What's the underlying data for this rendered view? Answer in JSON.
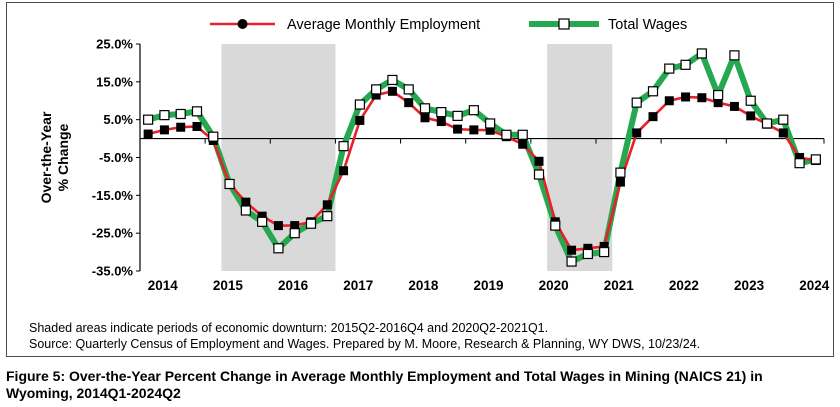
{
  "chart_data": {
    "type": "line",
    "ylabel_line1": "Over-the-Year",
    "ylabel_line2": "% Change",
    "ylim": [
      -35,
      25
    ],
    "yticks": [
      25,
      15,
      5,
      -5,
      -15,
      -25,
      -35
    ],
    "ytick_labels": [
      "25.0%",
      "15.0%",
      "5.0%",
      "-5.0%",
      "-15.0%",
      "-25.0%",
      "-35.0%"
    ],
    "xlim": [
      2014,
      2024.5
    ],
    "xticks": [
      2014,
      2015,
      2016,
      2017,
      2018,
      2019,
      2020,
      2021,
      2022,
      2023,
      2024
    ],
    "xtick_labels": [
      "2014",
      "2015",
      "2016",
      "2017",
      "2018",
      "2019",
      "2020",
      "2021",
      "2022",
      "2023",
      "2024"
    ],
    "x_quarters": [
      "2014Q1",
      "2014Q2",
      "2014Q3",
      "2014Q4",
      "2015Q1",
      "2015Q2",
      "2015Q3",
      "2015Q4",
      "2016Q1",
      "2016Q2",
      "2016Q3",
      "2016Q4",
      "2017Q1",
      "2017Q2",
      "2017Q3",
      "2017Q4",
      "2018Q1",
      "2018Q2",
      "2018Q3",
      "2018Q4",
      "2019Q1",
      "2019Q2",
      "2019Q3",
      "2019Q4",
      "2020Q1",
      "2020Q2",
      "2020Q3",
      "2020Q4",
      "2021Q1",
      "2021Q2",
      "2021Q3",
      "2021Q4",
      "2022Q1",
      "2022Q2",
      "2022Q3",
      "2022Q4",
      "2023Q1",
      "2023Q2",
      "2023Q3",
      "2023Q4",
      "2024Q1",
      "2024Q2"
    ],
    "shaded_periods": [
      [
        "2015Q2",
        "2016Q4"
      ],
      [
        "2020Q2",
        "2021Q1"
      ]
    ],
    "legend_position": "top",
    "series": [
      {
        "name": "Average Monthly Employment",
        "color": "#e8202a",
        "marker": "filled-circle-square",
        "values": [
          1.2,
          2.3,
          3.0,
          3.2,
          -0.5,
          -12.0,
          -16.8,
          -20.5,
          -23.0,
          -23.0,
          -22.0,
          -17.5,
          -8.5,
          4.8,
          11.5,
          12.5,
          9.5,
          5.5,
          4.5,
          2.5,
          2.3,
          2.2,
          0.5,
          -1.5,
          -6.0,
          -22.0,
          -29.5,
          -29.0,
          -28.5,
          -11.5,
          1.5,
          5.8,
          10.0,
          11.0,
          10.8,
          9.5,
          8.5,
          6.0,
          3.8,
          1.5,
          -5.0,
          -5.8
        ]
      },
      {
        "name": "Total Wages",
        "color": "#25a84f",
        "marker": "hollow-square",
        "values": [
          5.0,
          6.2,
          6.5,
          7.2,
          0.5,
          -12.0,
          -19.0,
          -22.0,
          -29.0,
          -25.0,
          -22.5,
          -20.5,
          -2.0,
          9.0,
          13.0,
          15.5,
          13.0,
          8.0,
          7.0,
          6.0,
          7.5,
          4.0,
          1.0,
          1.0,
          -9.5,
          -23.0,
          -32.5,
          -30.5,
          -30.0,
          -9.0,
          9.5,
          12.5,
          18.5,
          19.5,
          22.5,
          11.5,
          22.0,
          10.0,
          4.0,
          5.0,
          -6.5,
          -5.5
        ]
      }
    ],
    "grid": false
  },
  "notes": {
    "shaded": "Shaded areas indicate periods of economic downturn: 2015Q2-2016Q4 and 2020Q2-2021Q1.",
    "source": "Source: Quarterly Census of Employment and Wages. Prepared by M. Moore, Research & Planning, WY DWS, 10/23/24."
  },
  "caption": "Figure 5: Over-the-Year Percent Change in Average Monthly Employment and Total Wages in Mining (NAICS 21) in Wyoming, 2014Q1-2024Q2",
  "colors": {
    "shading": "#d9d9d9",
    "axis": "#000000"
  }
}
